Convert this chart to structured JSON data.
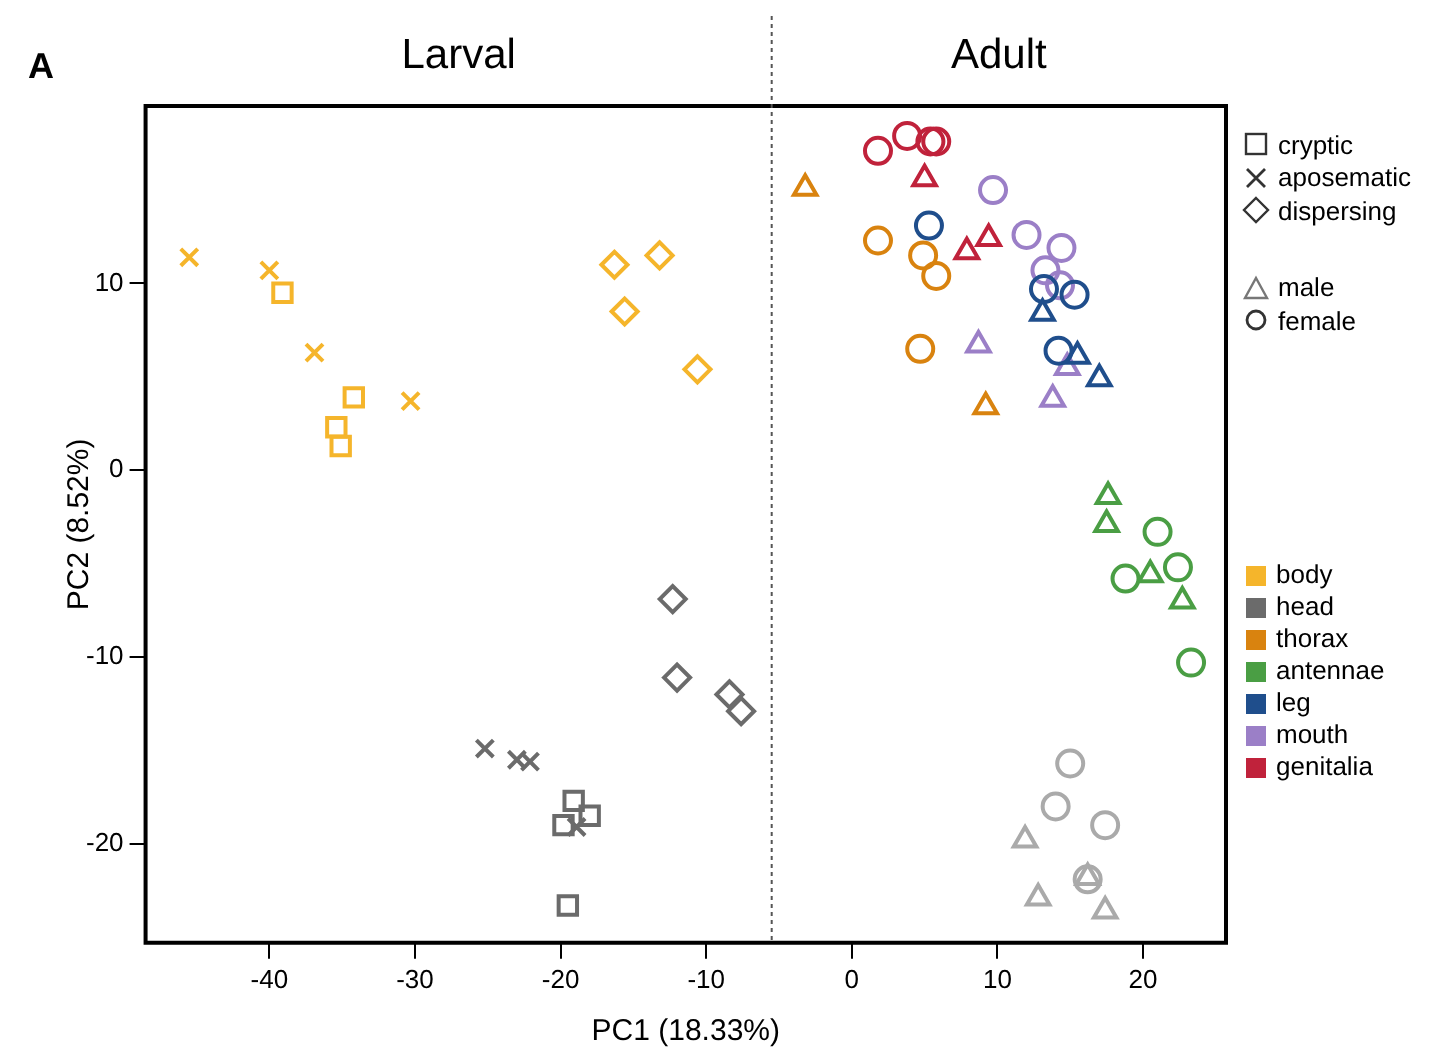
{
  "chart_data": {
    "type": "scatter",
    "xlabel": "PC1 (18.33%)",
    "ylabel": "PC2 (8.52%)",
    "annotations": [
      "A",
      "Larval",
      "Adult",
      "cryptic",
      "aposematic",
      "dispersing",
      "male",
      "female"
    ],
    "xlim": [
      -48.5,
      25.7
    ],
    "ylim": [
      -25.3,
      19.5
    ],
    "xticks": [
      -40,
      -30,
      -20,
      -10,
      0,
      10,
      20
    ],
    "yticks": [
      -20,
      -10,
      0,
      10
    ],
    "grid": false,
    "legend": "right",
    "ref_lines": [
      {
        "axis": "x",
        "value": -5.5,
        "color": "#555555",
        "line_style": "dotted"
      }
    ],
    "series": [
      {
        "name": "body",
        "color": "#f5b52b",
        "marker": [
          "cross",
          "cross",
          "cross",
          "cross",
          "square",
          "square",
          "square",
          "square",
          "diamond",
          "diamond",
          "diamond",
          "diamond"
        ],
        "x": [
          -45.5,
          -40.0,
          -36.9,
          -30.3,
          -39.1,
          -34.2,
          -35.4,
          -35.1,
          -16.3,
          -13.2,
          -15.6,
          -10.6
        ],
        "values": [
          11.4,
          10.7,
          6.3,
          3.7,
          9.5,
          3.9,
          2.3,
          1.3,
          11.0,
          11.5,
          8.5,
          5.4
        ]
      },
      {
        "name": "head",
        "color": "#6b6b6b",
        "marker": [
          "cross",
          "cross",
          "cross",
          "cross",
          "square",
          "square",
          "square",
          "square",
          "diamond",
          "diamond",
          "diamond",
          "diamond"
        ],
        "x": [
          -25.2,
          -23.0,
          -22.1,
          -18.9,
          -19.1,
          -18.0,
          -19.8,
          -19.5,
          -12.3,
          -12.0,
          -8.4,
          -7.6
        ],
        "values": [
          -14.9,
          -15.5,
          -15.6,
          -19.1,
          -17.7,
          -18.5,
          -19.0,
          -23.3,
          -6.9,
          -11.1,
          -12.0,
          -12.9
        ]
      },
      {
        "name": "thorax",
        "color": "#d9830f",
        "marker": [
          "triangle",
          "triangle",
          "circle",
          "circle",
          "circle",
          "circle"
        ],
        "x": [
          -3.2,
          9.2,
          1.8,
          4.9,
          5.8,
          4.7
        ],
        "values": [
          15.1,
          3.4,
          12.3,
          11.5,
          10.4,
          6.5
        ]
      },
      {
        "name": "antennae",
        "color": "#4a9e44",
        "marker": [
          "triangle",
          "triangle",
          "triangle",
          "triangle",
          "circle",
          "circle",
          "circle",
          "circle"
        ],
        "x": [
          17.6,
          17.5,
          20.5,
          22.7,
          21.0,
          18.8,
          22.4,
          23.3
        ],
        "values": [
          -1.4,
          -2.9,
          -5.6,
          -7.0,
          -3.3,
          -5.8,
          -5.2,
          -10.3
        ]
      },
      {
        "name": "leg",
        "color": "#1f4e8c",
        "marker": [
          "triangle",
          "triangle",
          "triangle",
          "circle",
          "circle",
          "circle",
          "circle"
        ],
        "x": [
          13.1,
          15.5,
          17.0,
          5.3,
          13.2,
          15.3,
          14.2
        ],
        "values": [
          8.4,
          6.1,
          4.9,
          13.1,
          9.7,
          9.4,
          6.4
        ]
      },
      {
        "name": "mouth",
        "color": "#9b7fc7",
        "marker": [
          "triangle",
          "triangle",
          "triangle",
          "circle",
          "circle",
          "circle",
          "circle",
          "circle"
        ],
        "x": [
          8.7,
          13.8,
          14.8,
          9.7,
          12.0,
          14.4,
          13.3,
          14.3
        ],
        "values": [
          6.7,
          3.8,
          5.5,
          15.0,
          12.6,
          11.9,
          10.7,
          9.9
        ]
      },
      {
        "name": "genitalia",
        "color": "#c0223b",
        "marker": [
          "triangle",
          "triangle",
          "triangle",
          "circle",
          "circle",
          "circle",
          "circle"
        ],
        "x": [
          5.0,
          7.9,
          9.4,
          1.8,
          3.8,
          5.4,
          5.8
        ],
        "values": [
          15.6,
          11.7,
          12.4,
          17.1,
          17.9,
          17.6,
          17.6
        ]
      },
      {
        "color": "#aaaaaa",
        "marker": [
          "triangle",
          "triangle",
          "triangle",
          "triangle",
          "circle",
          "circle",
          "circle",
          "circle"
        ],
        "x": [
          11.9,
          12.8,
          16.2,
          17.4,
          15.0,
          14.0,
          17.4,
          16.2
        ],
        "values": [
          -19.8,
          -22.9,
          -21.8,
          -23.6,
          -15.7,
          -18.0,
          -19.0,
          -21.9
        ]
      }
    ]
  }
}
